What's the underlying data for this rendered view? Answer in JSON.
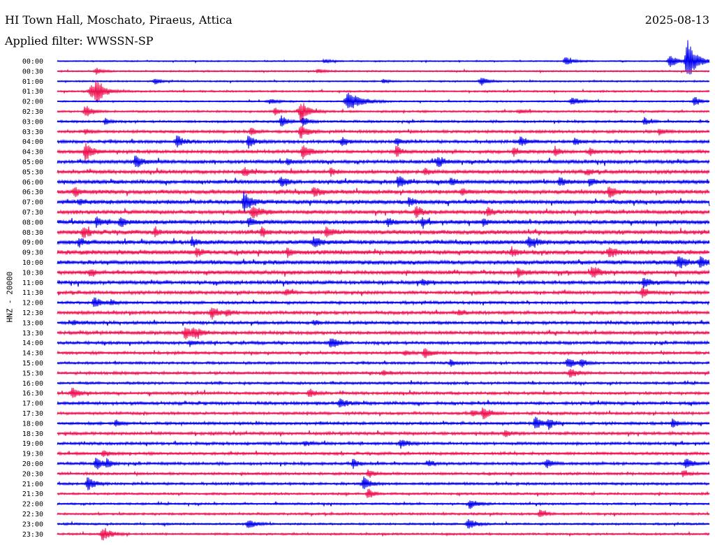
{
  "header": {
    "station": "HI Town Hall, Moschato, Piraeus, Attica",
    "filter": "Applied filter: WWSSN-SP",
    "date": "2025-08-13"
  },
  "colors": {
    "even": "#0000ee",
    "odd": "#ee1050"
  },
  "chart_data": {
    "type": "line",
    "title": "HI Town Hall, Moschato, Piraeus, Attica",
    "subtitle": "Applied filter: WWSSN-SP",
    "ylabel": "HNZ - 20000",
    "xlabel": "",
    "grid": false,
    "legend": "none",
    "rows": [
      "00:00",
      "00:30",
      "01:00",
      "01:30",
      "02:00",
      "02:30",
      "03:00",
      "03:30",
      "04:00",
      "04:30",
      "05:00",
      "05:30",
      "06:00",
      "06:30",
      "07:00",
      "07:30",
      "08:00",
      "08:30",
      "09:00",
      "09:30",
      "10:00",
      "10:30",
      "11:00",
      "11:30",
      "12:00",
      "12:30",
      "13:00",
      "13:30",
      "14:00",
      "14:30",
      "15:00",
      "15:30",
      "16:00",
      "16:30",
      "17:00",
      "17:30",
      "18:00",
      "18:30",
      "19:00",
      "19:30",
      "20:00",
      "20:30",
      "21:00",
      "21:30",
      "22:00",
      "22:30",
      "23:00",
      "23:30"
    ],
    "trace_minutes_per_row": 30,
    "background_amplitude": [
      0.1,
      0.12,
      0.12,
      0.14,
      0.12,
      0.16,
      0.18,
      0.22,
      0.24,
      0.26,
      0.28,
      0.28,
      0.3,
      0.32,
      0.32,
      0.3,
      0.32,
      0.34,
      0.34,
      0.36,
      0.34,
      0.3,
      0.28,
      0.26,
      0.22,
      0.26,
      0.24,
      0.26,
      0.24,
      0.22,
      0.2,
      0.22,
      0.2,
      0.22,
      0.24,
      0.22,
      0.22,
      0.24,
      0.22,
      0.22,
      0.22,
      0.2,
      0.2,
      0.18,
      0.16,
      0.18,
      0.16,
      0.16
    ],
    "events": [
      {
        "row": 0,
        "minute": 29.0,
        "amp": 4.5,
        "dur": 0.5
      },
      {
        "row": 0,
        "minute": 28.2,
        "amp": 1.2,
        "dur": 0.5
      },
      {
        "row": 0,
        "minute": 23.4,
        "amp": 0.8,
        "dur": 0.5
      },
      {
        "row": 0,
        "minute": 12.3,
        "amp": 0.4,
        "dur": 0.4
      },
      {
        "row": 1,
        "minute": 1.8,
        "amp": 0.6,
        "dur": 0.4
      },
      {
        "row": 1,
        "minute": 12.0,
        "amp": 0.4,
        "dur": 0.4
      },
      {
        "row": 2,
        "minute": 4.5,
        "amp": 0.7,
        "dur": 0.3
      },
      {
        "row": 2,
        "minute": 19.5,
        "amp": 0.8,
        "dur": 0.4
      },
      {
        "row": 2,
        "minute": 15.0,
        "amp": 0.4,
        "dur": 0.3
      },
      {
        "row": 3,
        "minute": 1.6,
        "amp": 1.2,
        "dur": 0.8
      },
      {
        "row": 3,
        "minute": 1.8,
        "amp": 2.5,
        "dur": 0.3
      },
      {
        "row": 4,
        "minute": 13.4,
        "amp": 1.8,
        "dur": 0.8
      },
      {
        "row": 4,
        "minute": 23.7,
        "amp": 0.8,
        "dur": 0.5
      },
      {
        "row": 4,
        "minute": 29.3,
        "amp": 1.2,
        "dur": 0.3
      },
      {
        "row": 4,
        "minute": 9.8,
        "amp": 0.5,
        "dur": 0.5
      },
      {
        "row": 5,
        "minute": 1.3,
        "amp": 1.3,
        "dur": 0.4
      },
      {
        "row": 5,
        "minute": 11.2,
        "amp": 2.2,
        "dur": 0.5
      },
      {
        "row": 5,
        "minute": 10.0,
        "amp": 0.8,
        "dur": 0.3
      },
      {
        "row": 5,
        "minute": 21.3,
        "amp": 0.4,
        "dur": 0.4
      },
      {
        "row": 6,
        "minute": 2.2,
        "amp": 0.8,
        "dur": 0.3
      },
      {
        "row": 6,
        "minute": 10.3,
        "amp": 1.4,
        "dur": 0.3
      },
      {
        "row": 6,
        "minute": 11.3,
        "amp": 1.0,
        "dur": 0.3
      },
      {
        "row": 6,
        "minute": 27.0,
        "amp": 0.8,
        "dur": 0.3
      },
      {
        "row": 7,
        "minute": 11.2,
        "amp": 1.4,
        "dur": 0.4
      },
      {
        "row": 7,
        "minute": 8.9,
        "amp": 0.9,
        "dur": 0.3
      },
      {
        "row": 7,
        "minute": 1.3,
        "amp": 0.5,
        "dur": 0.3
      },
      {
        "row": 7,
        "minute": 27.7,
        "amp": 0.6,
        "dur": 0.3
      },
      {
        "row": 8,
        "minute": 5.5,
        "amp": 1.2,
        "dur": 0.4
      },
      {
        "row": 8,
        "minute": 8.8,
        "amp": 1.2,
        "dur": 0.4
      },
      {
        "row": 8,
        "minute": 13.1,
        "amp": 0.8,
        "dur": 0.4
      },
      {
        "row": 8,
        "minute": 15.6,
        "amp": 0.8,
        "dur": 0.3
      },
      {
        "row": 8,
        "minute": 21.3,
        "amp": 0.9,
        "dur": 0.4
      },
      {
        "row": 8,
        "minute": 23.8,
        "amp": 0.7,
        "dur": 0.3
      },
      {
        "row": 9,
        "minute": 1.3,
        "amp": 1.8,
        "dur": 0.4
      },
      {
        "row": 9,
        "minute": 11.3,
        "amp": 1.6,
        "dur": 0.4
      },
      {
        "row": 9,
        "minute": 15.6,
        "amp": 1.2,
        "dur": 0.3
      },
      {
        "row": 9,
        "minute": 21.0,
        "amp": 1.0,
        "dur": 0.3
      },
      {
        "row": 9,
        "minute": 22.9,
        "amp": 0.9,
        "dur": 0.3
      },
      {
        "row": 9,
        "minute": 24.5,
        "amp": 0.8,
        "dur": 0.3
      },
      {
        "row": 10,
        "minute": 3.6,
        "amp": 1.2,
        "dur": 0.4
      },
      {
        "row": 10,
        "minute": 17.5,
        "amp": 1.0,
        "dur": 0.4
      },
      {
        "row": 10,
        "minute": 10.6,
        "amp": 0.6,
        "dur": 0.3
      },
      {
        "row": 11,
        "minute": 8.6,
        "amp": 0.9,
        "dur": 0.4
      },
      {
        "row": 11,
        "minute": 12.6,
        "amp": 0.8,
        "dur": 0.3
      },
      {
        "row": 11,
        "minute": 16.9,
        "amp": 0.7,
        "dur": 0.3
      },
      {
        "row": 11,
        "minute": 24.4,
        "amp": 0.6,
        "dur": 0.3
      },
      {
        "row": 12,
        "minute": 10.3,
        "amp": 1.0,
        "dur": 0.4
      },
      {
        "row": 12,
        "minute": 15.7,
        "amp": 1.2,
        "dur": 0.4
      },
      {
        "row": 12,
        "minute": 18.1,
        "amp": 0.8,
        "dur": 0.3
      },
      {
        "row": 12,
        "minute": 23.1,
        "amp": 1.0,
        "dur": 0.3
      },
      {
        "row": 12,
        "minute": 24.5,
        "amp": 0.8,
        "dur": 0.3
      },
      {
        "row": 13,
        "minute": 0.8,
        "amp": 0.9,
        "dur": 0.4
      },
      {
        "row": 13,
        "minute": 11.8,
        "amp": 0.9,
        "dur": 0.4
      },
      {
        "row": 13,
        "minute": 18.6,
        "amp": 0.8,
        "dur": 0.3
      },
      {
        "row": 13,
        "minute": 25.4,
        "amp": 1.0,
        "dur": 0.4
      },
      {
        "row": 14,
        "minute": 8.6,
        "amp": 2.2,
        "dur": 0.4
      },
      {
        "row": 14,
        "minute": 16.2,
        "amp": 0.8,
        "dur": 0.4
      },
      {
        "row": 14,
        "minute": 1.0,
        "amp": 0.5,
        "dur": 0.3
      },
      {
        "row": 15,
        "minute": 9.0,
        "amp": 1.3,
        "dur": 0.5
      },
      {
        "row": 15,
        "minute": 16.5,
        "amp": 1.1,
        "dur": 0.4
      },
      {
        "row": 15,
        "minute": 19.8,
        "amp": 0.9,
        "dur": 0.3
      },
      {
        "row": 16,
        "minute": 1.8,
        "amp": 0.8,
        "dur": 0.4
      },
      {
        "row": 16,
        "minute": 2.9,
        "amp": 0.9,
        "dur": 0.4
      },
      {
        "row": 16,
        "minute": 8.8,
        "amp": 1.1,
        "dur": 0.3
      },
      {
        "row": 16,
        "minute": 15.2,
        "amp": 0.8,
        "dur": 0.3
      },
      {
        "row": 16,
        "minute": 16.8,
        "amp": 0.8,
        "dur": 0.3
      },
      {
        "row": 16,
        "minute": 19.6,
        "amp": 0.7,
        "dur": 0.3
      },
      {
        "row": 17,
        "minute": 1.2,
        "amp": 1.0,
        "dur": 0.4
      },
      {
        "row": 17,
        "minute": 4.5,
        "amp": 0.8,
        "dur": 0.3
      },
      {
        "row": 17,
        "minute": 9.4,
        "amp": 1.0,
        "dur": 0.3
      },
      {
        "row": 17,
        "minute": 12.4,
        "amp": 1.1,
        "dur": 0.4
      },
      {
        "row": 18,
        "minute": 1.0,
        "amp": 0.9,
        "dur": 0.3
      },
      {
        "row": 18,
        "minute": 6.2,
        "amp": 0.9,
        "dur": 0.3
      },
      {
        "row": 18,
        "minute": 11.8,
        "amp": 1.1,
        "dur": 0.4
      },
      {
        "row": 18,
        "minute": 21.7,
        "amp": 1.3,
        "dur": 0.4
      },
      {
        "row": 19,
        "minute": 6.4,
        "amp": 0.8,
        "dur": 0.3
      },
      {
        "row": 19,
        "minute": 10.6,
        "amp": 0.8,
        "dur": 0.3
      },
      {
        "row": 19,
        "minute": 20.9,
        "amp": 0.9,
        "dur": 0.3
      },
      {
        "row": 19,
        "minute": 25.4,
        "amp": 1.0,
        "dur": 0.4
      },
      {
        "row": 20,
        "minute": 28.6,
        "amp": 1.1,
        "dur": 0.5
      },
      {
        "row": 20,
        "minute": 29.6,
        "amp": 1.2,
        "dur": 0.4
      },
      {
        "row": 21,
        "minute": 1.5,
        "amp": 0.6,
        "dur": 0.3
      },
      {
        "row": 21,
        "minute": 21.2,
        "amp": 0.8,
        "dur": 0.4
      },
      {
        "row": 21,
        "minute": 24.6,
        "amp": 1.2,
        "dur": 0.4
      },
      {
        "row": 22,
        "minute": 27.0,
        "amp": 1.0,
        "dur": 0.4
      },
      {
        "row": 22,
        "minute": 16.8,
        "amp": 0.6,
        "dur": 0.3
      },
      {
        "row": 23,
        "minute": 10.5,
        "amp": 0.6,
        "dur": 0.3
      },
      {
        "row": 23,
        "minute": 26.9,
        "amp": 1.2,
        "dur": 0.3
      },
      {
        "row": 24,
        "minute": 1.7,
        "amp": 1.1,
        "dur": 0.4
      },
      {
        "row": 24,
        "minute": 2.5,
        "amp": 0.5,
        "dur": 0.3
      },
      {
        "row": 25,
        "minute": 7.1,
        "amp": 1.2,
        "dur": 0.4
      },
      {
        "row": 25,
        "minute": 7.8,
        "amp": 0.6,
        "dur": 0.3
      },
      {
        "row": 25,
        "minute": 18.5,
        "amp": 0.6,
        "dur": 0.3
      },
      {
        "row": 26,
        "minute": 0.7,
        "amp": 0.5,
        "dur": 0.3
      },
      {
        "row": 26,
        "minute": 11.8,
        "amp": 0.5,
        "dur": 0.3
      },
      {
        "row": 27,
        "minute": 5.9,
        "amp": 1.1,
        "dur": 0.5
      },
      {
        "row": 27,
        "minute": 6.3,
        "amp": 0.7,
        "dur": 0.4
      },
      {
        "row": 28,
        "minute": 12.6,
        "amp": 1.2,
        "dur": 0.4
      },
      {
        "row": 28,
        "minute": 6.1,
        "amp": 0.6,
        "dur": 0.3
      },
      {
        "row": 29,
        "minute": 16.9,
        "amp": 1.0,
        "dur": 0.4
      },
      {
        "row": 29,
        "minute": 16.0,
        "amp": 0.6,
        "dur": 0.3
      },
      {
        "row": 30,
        "minute": 18.1,
        "amp": 0.6,
        "dur": 0.3
      },
      {
        "row": 30,
        "minute": 23.5,
        "amp": 1.1,
        "dur": 0.4
      },
      {
        "row": 30,
        "minute": 24.1,
        "amp": 0.8,
        "dur": 0.3
      },
      {
        "row": 31,
        "minute": 23.6,
        "amp": 1.0,
        "dur": 0.4
      },
      {
        "row": 31,
        "minute": 15.0,
        "amp": 0.5,
        "dur": 0.3
      },
      {
        "row": 33,
        "minute": 0.7,
        "amp": 1.0,
        "dur": 0.4
      },
      {
        "row": 33,
        "minute": 11.6,
        "amp": 0.8,
        "dur": 0.4
      },
      {
        "row": 34,
        "minute": 13.0,
        "amp": 0.9,
        "dur": 0.4
      },
      {
        "row": 35,
        "minute": 19.6,
        "amp": 1.2,
        "dur": 0.4
      },
      {
        "row": 35,
        "minute": 19.1,
        "amp": 0.7,
        "dur": 0.3
      },
      {
        "row": 36,
        "minute": 2.7,
        "amp": 0.7,
        "dur": 0.3
      },
      {
        "row": 36,
        "minute": 22.0,
        "amp": 1.3,
        "dur": 0.4
      },
      {
        "row": 36,
        "minute": 22.6,
        "amp": 1.0,
        "dur": 0.3
      },
      {
        "row": 36,
        "minute": 28.3,
        "amp": 1.0,
        "dur": 0.3
      },
      {
        "row": 37,
        "minute": 20.6,
        "amp": 0.8,
        "dur": 0.3
      },
      {
        "row": 38,
        "minute": 15.8,
        "amp": 0.9,
        "dur": 0.4
      },
      {
        "row": 38,
        "minute": 11.4,
        "amp": 0.5,
        "dur": 0.3
      },
      {
        "row": 39,
        "minute": 2.1,
        "amp": 0.7,
        "dur": 0.3
      },
      {
        "row": 40,
        "minute": 1.8,
        "amp": 1.2,
        "dur": 0.4
      },
      {
        "row": 40,
        "minute": 2.3,
        "amp": 0.8,
        "dur": 0.3
      },
      {
        "row": 40,
        "minute": 13.6,
        "amp": 1.0,
        "dur": 0.3
      },
      {
        "row": 40,
        "minute": 17.1,
        "amp": 0.6,
        "dur": 0.3
      },
      {
        "row": 40,
        "minute": 22.5,
        "amp": 1.0,
        "dur": 0.3
      },
      {
        "row": 40,
        "minute": 28.9,
        "amp": 1.0,
        "dur": 0.4
      },
      {
        "row": 41,
        "minute": 14.3,
        "amp": 0.9,
        "dur": 0.3
      },
      {
        "row": 41,
        "minute": 28.8,
        "amp": 0.8,
        "dur": 0.3
      },
      {
        "row": 42,
        "minute": 1.4,
        "amp": 1.4,
        "dur": 0.4
      },
      {
        "row": 42,
        "minute": 14.1,
        "amp": 1.3,
        "dur": 0.4
      },
      {
        "row": 43,
        "minute": 14.3,
        "amp": 1.2,
        "dur": 0.3
      },
      {
        "row": 44,
        "minute": 19.0,
        "amp": 1.0,
        "dur": 0.4
      },
      {
        "row": 45,
        "minute": 22.2,
        "amp": 0.7,
        "dur": 0.4
      },
      {
        "row": 46,
        "minute": 8.8,
        "amp": 1.0,
        "dur": 0.4
      },
      {
        "row": 46,
        "minute": 18.9,
        "amp": 1.2,
        "dur": 0.4
      },
      {
        "row": 47,
        "minute": 2.1,
        "amp": 1.4,
        "dur": 0.5
      }
    ]
  }
}
